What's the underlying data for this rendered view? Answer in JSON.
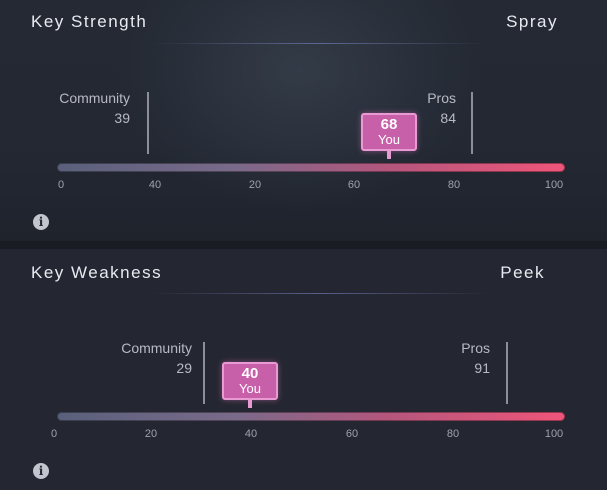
{
  "panels": [
    {
      "title": "Key Strength",
      "value": "Spray",
      "community": {
        "label": "Community",
        "value": "39"
      },
      "pros": {
        "label": "Pros",
        "value": "84"
      },
      "you": {
        "value": "68",
        "label": "You"
      },
      "ticks": [
        "0",
        "40",
        "20",
        "60",
        "80",
        "100"
      ]
    },
    {
      "title": "Key Weakness",
      "value": "Peek",
      "community": {
        "label": "Community",
        "value": "29"
      },
      "pros": {
        "label": "Pros",
        "value": "91"
      },
      "you": {
        "value": "40",
        "label": "You"
      },
      "ticks": [
        "0",
        "20",
        "40",
        "60",
        "80",
        "100"
      ]
    }
  ],
  "icons": {
    "info": "info-icon"
  },
  "colors": {
    "you_badge": "#c85fa9",
    "track_end": "#f0557a"
  }
}
